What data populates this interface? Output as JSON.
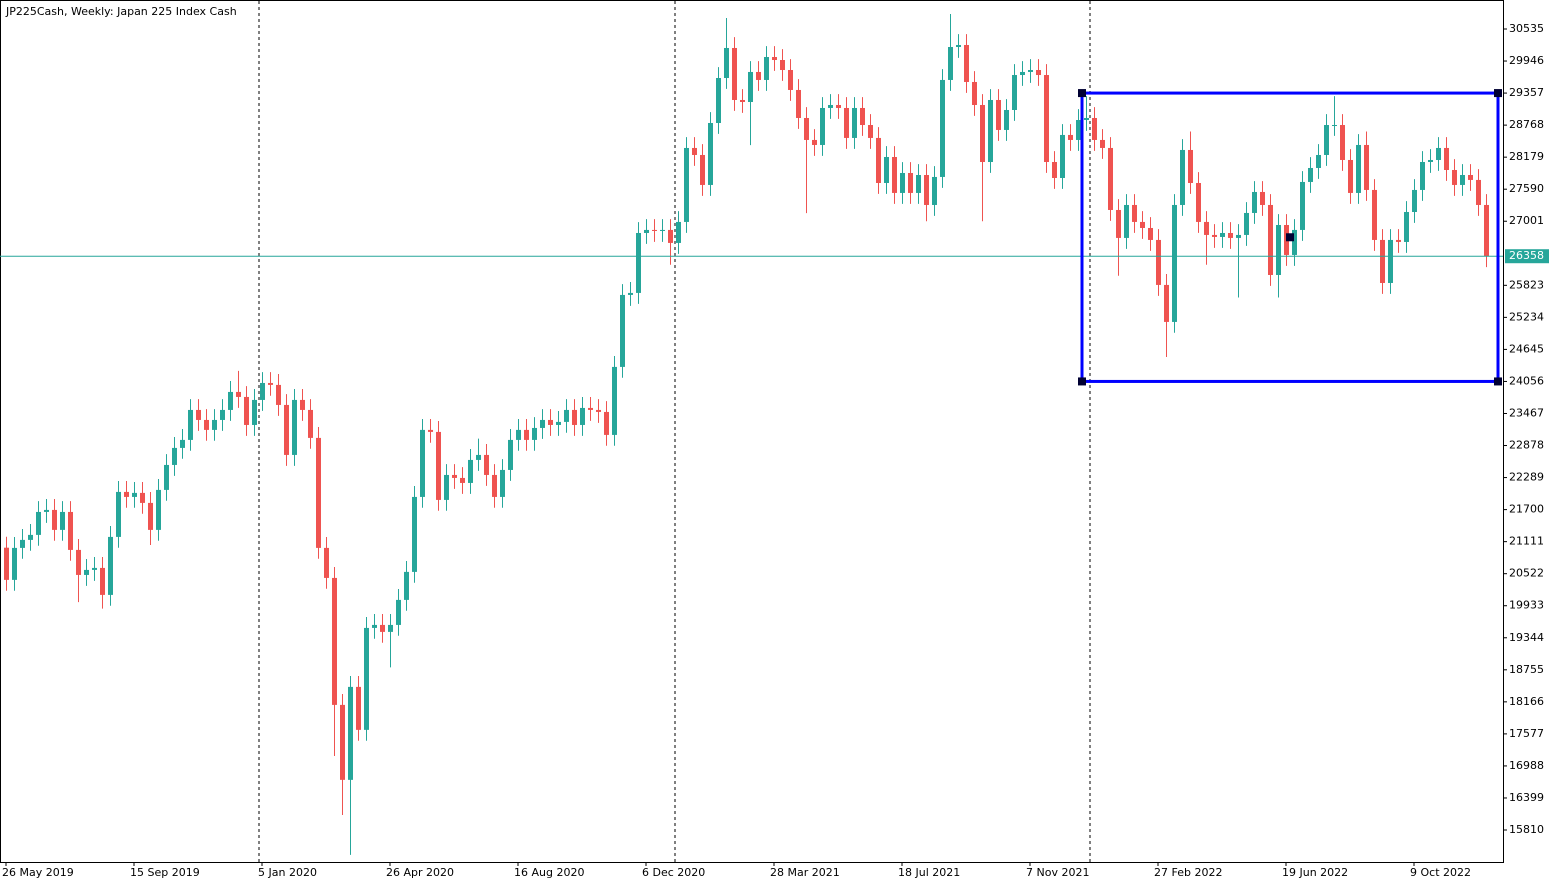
{
  "chart_data": {
    "type": "candlestick",
    "title": "JP225Cash, Weekly:  Japan 225 Index Cash",
    "categories": [
      "26 May 2019",
      null,
      null,
      null,
      null,
      null,
      null,
      null,
      null,
      null,
      null,
      null,
      null,
      null,
      null,
      null,
      "15 Sep 2019",
      null,
      null,
      null,
      null,
      null,
      null,
      null,
      null,
      null,
      null,
      null,
      null,
      null,
      null,
      null,
      "5 Jan 2020",
      null,
      null,
      null,
      null,
      null,
      null,
      null,
      null,
      null,
      null,
      null,
      null,
      null,
      null,
      null,
      "26 Apr 2020",
      null,
      null,
      null,
      null,
      null,
      null,
      null,
      null,
      null,
      null,
      null,
      null,
      null,
      null,
      null,
      "16 Aug 2020",
      null,
      null,
      null,
      null,
      null,
      null,
      null,
      null,
      null,
      null,
      null,
      null,
      null,
      null,
      null,
      "6 Dec 2020",
      null,
      null,
      null,
      null,
      null,
      null,
      null,
      null,
      null,
      null,
      null,
      null,
      null,
      null,
      null,
      "28 Mar 2021",
      null,
      null,
      null,
      null,
      null,
      null,
      null,
      null,
      null,
      null,
      null,
      null,
      null,
      null,
      null,
      "18 Jul 2021",
      null,
      null,
      null,
      null,
      null,
      null,
      null,
      null,
      null,
      null,
      null,
      null,
      null,
      null,
      null,
      "7 Nov 2021",
      null,
      null,
      null,
      null,
      null,
      null,
      null,
      null,
      null,
      null,
      null,
      null,
      null,
      null,
      null,
      "27 Feb 2022",
      null,
      null,
      null,
      null,
      null,
      null,
      null,
      null,
      null,
      null,
      null,
      null,
      null,
      null,
      null,
      "19 Jun 2022",
      null,
      null,
      null,
      null,
      null,
      null,
      null,
      null,
      null,
      null,
      null,
      null,
      null,
      null,
      null,
      "9 Oct 2022",
      null,
      null,
      null,
      null,
      null,
      null,
      null,
      null,
      null
    ],
    "ohlc": [
      [
        21000,
        21200,
        20208,
        20408
      ],
      [
        20408,
        21196,
        20208,
        20996
      ],
      [
        20996,
        21343,
        20796,
        21143
      ],
      [
        21143,
        21435,
        20943,
        21235
      ],
      [
        21235,
        21857,
        21035,
        21657
      ],
      [
        21657,
        21894,
        21457,
        21694
      ],
      [
        21694,
        21894,
        21127,
        21327
      ],
      [
        21327,
        21857,
        21127,
        21657
      ],
      [
        21657,
        21857,
        20759,
        20959
      ],
      [
        20959,
        21159,
        20000,
        20499
      ],
      [
        20499,
        20791,
        20299,
        20591
      ],
      [
        20591,
        20828,
        20391,
        20628
      ],
      [
        20628,
        20828,
        19880,
        20132
      ],
      [
        20132,
        21398,
        19932,
        21198
      ],
      [
        21198,
        22225,
        20998,
        22025
      ],
      [
        22025,
        22225,
        21733,
        21933
      ],
      [
        21933,
        22207,
        21733,
        22007
      ],
      [
        22007,
        22207,
        21623,
        21823
      ],
      [
        21823,
        22023,
        21050,
        21327
      ],
      [
        21327,
        22262,
        21127,
        22062
      ],
      [
        22062,
        22721,
        21862,
        22521
      ],
      [
        22521,
        23034,
        22321,
        22834
      ],
      [
        22834,
        23181,
        22634,
        22981
      ],
      [
        22981,
        23732,
        22781,
        23532
      ],
      [
        23532,
        23732,
        23148,
        23348
      ],
      [
        23348,
        23548,
        22965,
        23165
      ],
      [
        23165,
        23548,
        22965,
        23348
      ],
      [
        23348,
        23732,
        23148,
        23532
      ],
      [
        23532,
        24063,
        23332,
        23863
      ],
      [
        23863,
        24250,
        23571,
        23771
      ],
      [
        23771,
        23971,
        23056,
        23256
      ],
      [
        23256,
        23916,
        23056,
        23716
      ],
      [
        23716,
        24228,
        23516,
        24028
      ],
      [
        24028,
        24228,
        23792,
        23992
      ],
      [
        23992,
        24192,
        23424,
        23624
      ],
      [
        23624,
        23824,
        22505,
        22705
      ],
      [
        22705,
        23916,
        22505,
        23716
      ],
      [
        23716,
        23916,
        23332,
        23532
      ],
      [
        23532,
        23732,
        22818,
        23018
      ],
      [
        23018,
        23218,
        20796,
        20996
      ],
      [
        20996,
        21196,
        20244,
        20444
      ],
      [
        20444,
        20644,
        17170,
        18110
      ],
      [
        18110,
        18310,
        16087,
        16732
      ],
      [
        16732,
        18641,
        15353,
        18441
      ],
      [
        18441,
        18641,
        17451,
        17651
      ],
      [
        17651,
        19725,
        17451,
        19525
      ],
      [
        19525,
        19780,
        19325,
        19580
      ],
      [
        19580,
        19780,
        19252,
        19452
      ],
      [
        19452,
        19780,
        18800,
        19580
      ],
      [
        19580,
        20240,
        19380,
        20040
      ],
      [
        20040,
        20755,
        19840,
        20555
      ],
      [
        20555,
        22133,
        20355,
        21933
      ],
      [
        21933,
        23365,
        21733,
        23165
      ],
      [
        23165,
        23365,
        22928,
        23128
      ],
      [
        23128,
        23328,
        21678,
        21878
      ],
      [
        21878,
        22537,
        21678,
        22337
      ],
      [
        22337,
        22537,
        22082,
        22282
      ],
      [
        22282,
        22482,
        21990,
        22190
      ],
      [
        22190,
        22813,
        21990,
        22613
      ],
      [
        22613,
        23005,
        22413,
        22705
      ],
      [
        22705,
        22905,
        22137,
        22337
      ],
      [
        22337,
        22537,
        21733,
        21933
      ],
      [
        21933,
        22629,
        21733,
        22429
      ],
      [
        22429,
        23181,
        22229,
        22981
      ],
      [
        22981,
        23365,
        22781,
        23165
      ],
      [
        23165,
        23365,
        22781,
        22981
      ],
      [
        22981,
        23401,
        22781,
        23201
      ],
      [
        23201,
        23548,
        23001,
        23348
      ],
      [
        23348,
        23548,
        23056,
        23256
      ],
      [
        23256,
        23512,
        23056,
        23312
      ],
      [
        23312,
        23732,
        23112,
        23532
      ],
      [
        23532,
        23732,
        23056,
        23256
      ],
      [
        23256,
        23769,
        23056,
        23569
      ],
      [
        23569,
        23769,
        23332,
        23532
      ],
      [
        23532,
        23732,
        23295,
        23495
      ],
      [
        23495,
        23695,
        22873,
        23073
      ],
      [
        23073,
        24523,
        22873,
        24323
      ],
      [
        24323,
        25846,
        24123,
        25646
      ],
      [
        25646,
        25883,
        25446,
        25683
      ],
      [
        25683,
        26985,
        25483,
        26785
      ],
      [
        26785,
        27041,
        26585,
        26841
      ],
      [
        26841,
        27041,
        26622,
        26822
      ],
      [
        26822,
        27041,
        26622,
        26841
      ],
      [
        26841,
        27041,
        26200,
        26602
      ],
      [
        26602,
        27188,
        26402,
        26988
      ],
      [
        26988,
        28548,
        26788,
        28348
      ],
      [
        28348,
        28548,
        28019,
        28219
      ],
      [
        28219,
        28419,
        27468,
        27668
      ],
      [
        27668,
        29007,
        27468,
        28807
      ],
      [
        28807,
        29834,
        28607,
        29634
      ],
      [
        29634,
        30737,
        29434,
        30186
      ],
      [
        30186,
        30386,
        29030,
        29230
      ],
      [
        29230,
        29430,
        28993,
        29193
      ],
      [
        29193,
        29945,
        28400,
        29745
      ],
      [
        29745,
        29945,
        29398,
        29598
      ],
      [
        29598,
        30220,
        29398,
        30020
      ],
      [
        30020,
        30220,
        29765,
        29965
      ],
      [
        29965,
        30165,
        29581,
        29781
      ],
      [
        29781,
        29981,
        29214,
        29414
      ],
      [
        29414,
        29614,
        28699,
        28899
      ],
      [
        28899,
        29099,
        27150,
        28495
      ],
      [
        28495,
        28695,
        28203,
        28403
      ],
      [
        28403,
        29283,
        28203,
        29083
      ],
      [
        29083,
        29338,
        28883,
        29138
      ],
      [
        29138,
        29338,
        28883,
        29083
      ],
      [
        29083,
        29283,
        28332,
        28532
      ],
      [
        28532,
        29283,
        28332,
        29083
      ],
      [
        29083,
        29283,
        28570,
        28770
      ],
      [
        28770,
        28970,
        28332,
        28532
      ],
      [
        28532,
        28732,
        27504,
        27704
      ],
      [
        27704,
        28382,
        27504,
        28182
      ],
      [
        28182,
        28382,
        27321,
        27521
      ],
      [
        27521,
        28088,
        27321,
        27888
      ],
      [
        27888,
        28088,
        27321,
        27521
      ],
      [
        27521,
        28051,
        27321,
        27851
      ],
      [
        27851,
        28051,
        27000,
        27300
      ],
      [
        27300,
        28015,
        27100,
        27815
      ],
      [
        27815,
        29798,
        27615,
        29598
      ],
      [
        29598,
        30811,
        29398,
        30204
      ],
      [
        30204,
        30441,
        30004,
        30241
      ],
      [
        30241,
        30441,
        29361,
        29561
      ],
      [
        29561,
        29761,
        28938,
        29138
      ],
      [
        29138,
        29338,
        27000,
        28090
      ],
      [
        28090,
        29430,
        27890,
        29230
      ],
      [
        29230,
        29430,
        28479,
        28679
      ],
      [
        28679,
        29246,
        28479,
        29046
      ],
      [
        29046,
        29889,
        28846,
        29689
      ],
      [
        29689,
        29945,
        29489,
        29745
      ],
      [
        29745,
        29981,
        29545,
        29781
      ],
      [
        29781,
        29981,
        29489,
        29689
      ],
      [
        29689,
        29889,
        27890,
        28090
      ],
      [
        28090,
        28290,
        27596,
        27796
      ],
      [
        27796,
        28787,
        27596,
        28587
      ],
      [
        28587,
        28787,
        28295,
        28495
      ],
      [
        28495,
        29062,
        28295,
        28862
      ],
      [
        28862,
        29300,
        28662,
        28899
      ],
      [
        28899,
        29099,
        28295,
        28495
      ],
      [
        28495,
        28695,
        28148,
        28348
      ],
      [
        28348,
        28548,
        27008,
        27208
      ],
      [
        27208,
        27408,
        26000,
        26694
      ],
      [
        26694,
        27500,
        26494,
        27300
      ],
      [
        27300,
        27500,
        26788,
        26988
      ],
      [
        26988,
        27188,
        26677,
        26877
      ],
      [
        26877,
        27077,
        26457,
        26657
      ],
      [
        26657,
        26857,
        25630,
        25830
      ],
      [
        25830,
        26030,
        24506,
        25150
      ],
      [
        25150,
        27500,
        24950,
        27300
      ],
      [
        27300,
        28511,
        27100,
        28311
      ],
      [
        28311,
        28650,
        27504,
        27704
      ],
      [
        27704,
        27904,
        26788,
        26988
      ],
      [
        26988,
        27188,
        26200,
        26749
      ],
      [
        26749,
        26949,
        26512,
        26712
      ],
      [
        26712,
        26985,
        26512,
        26785
      ],
      [
        26785,
        26985,
        26494,
        26694
      ],
      [
        26694,
        26949,
        25600,
        26749
      ],
      [
        26749,
        27353,
        26549,
        27153
      ],
      [
        27153,
        27739,
        26953,
        27539
      ],
      [
        27539,
        27739,
        27100,
        27300
      ],
      [
        27300,
        27500,
        25813,
        26013
      ],
      [
        26013,
        27132,
        25600,
        26932
      ],
      [
        26932,
        27132,
        26181,
        26381
      ],
      [
        26381,
        27041,
        26181,
        26841
      ],
      [
        26841,
        27923,
        26641,
        27723
      ],
      [
        27723,
        28180,
        27523,
        27980
      ],
      [
        27980,
        28419,
        27780,
        28219
      ],
      [
        28219,
        28970,
        28019,
        28770
      ],
      [
        28770,
        29300,
        28570,
        28770
      ],
      [
        28770,
        28970,
        27927,
        28127
      ],
      [
        28127,
        28327,
        27321,
        27521
      ],
      [
        27521,
        28603,
        27321,
        28403
      ],
      [
        28403,
        28650,
        27376,
        27576
      ],
      [
        27576,
        27776,
        26457,
        26657
      ],
      [
        26657,
        26857,
        25666,
        25866
      ],
      [
        25866,
        26857,
        25666,
        26657
      ],
      [
        26657,
        26857,
        26420,
        26620
      ],
      [
        26620,
        27371,
        26420,
        27171
      ],
      [
        27171,
        27776,
        26971,
        27576
      ],
      [
        27576,
        28290,
        27376,
        28090
      ],
      [
        28090,
        28327,
        27890,
        28127
      ],
      [
        28127,
        28548,
        27927,
        28348
      ],
      [
        28348,
        28548,
        27743,
        27943
      ],
      [
        27943,
        28143,
        27468,
        27668
      ],
      [
        27668,
        28051,
        27468,
        27851
      ],
      [
        27851,
        28051,
        27560,
        27760
      ],
      [
        27760,
        27960,
        27100,
        27300
      ],
      [
        27300,
        27500,
        26158,
        26358
      ]
    ],
    "up_color": "#26a69a",
    "down_color": "#ef5350",
    "ylim": [
      15222,
      31068
    ],
    "yticks": [
      30535,
      29946,
      29357,
      28768,
      28179,
      27590,
      27001,
      25823,
      25234,
      24645,
      24056,
      23467,
      22878,
      22289,
      21700,
      21111,
      20522,
      19933,
      19344,
      18755,
      18166,
      17577,
      16988,
      16399,
      15810
    ],
    "price_line": {
      "value": 26358,
      "color": "#26a69a"
    },
    "rectangle": {
      "top": 29357,
      "bottom": 24056,
      "color": "#0000ff"
    }
  }
}
